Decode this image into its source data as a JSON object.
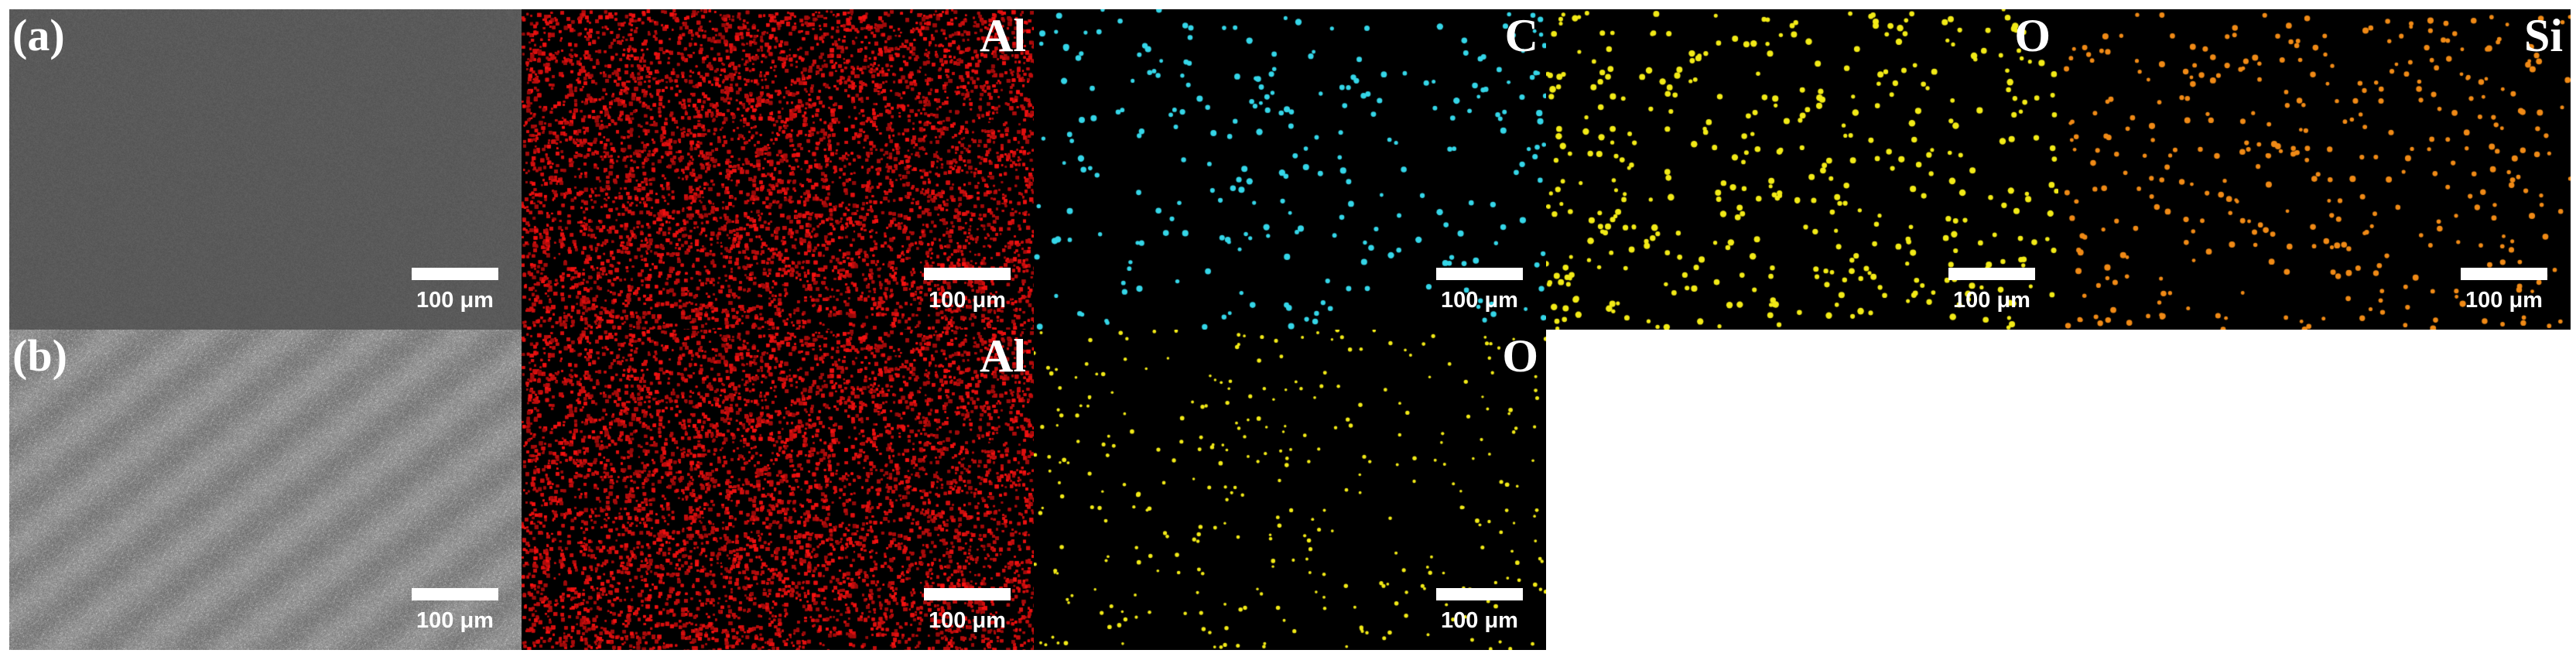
{
  "rows": [
    {
      "label": "(a)",
      "maps": [
        "Al",
        "C",
        "O",
        "Si"
      ],
      "scale_bar": "100 μm"
    },
    {
      "label": "(b)",
      "maps": [
        "Al",
        "O"
      ],
      "scale_bar": "100 μm"
    }
  ],
  "colors": {
    "background": "#ffffff",
    "sem_a": "#5a5a5a",
    "sem_b": "#8a8a8a",
    "al": "#e01010",
    "c": "#35d6e8",
    "o": "#f2ea17",
    "si": "#f08a16",
    "map_background": "#000000"
  }
}
